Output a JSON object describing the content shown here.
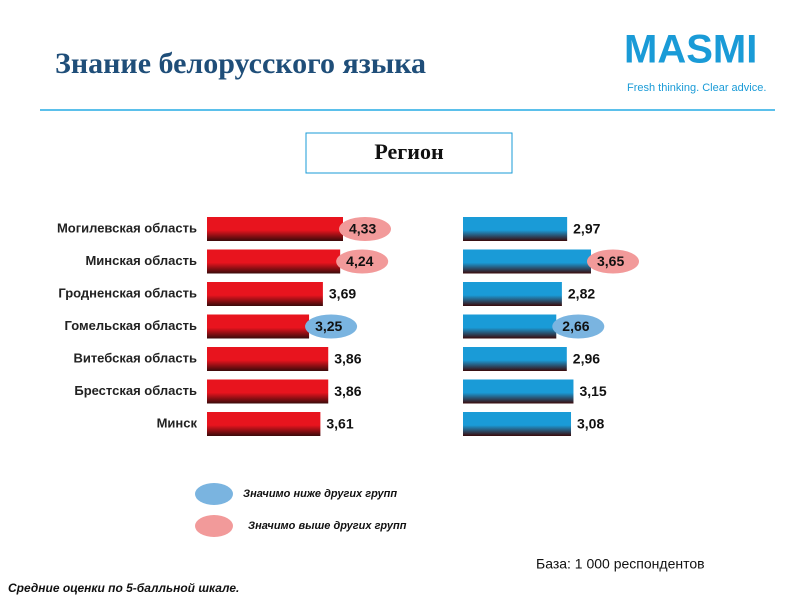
{
  "header": {
    "title": "Знание белорусского языка",
    "logo": "MASMI",
    "tagline": "Fresh thinking. Clear advice."
  },
  "chart_data": {
    "type": "bar",
    "orientation": "horizontal",
    "subtitle": "Регион",
    "categories": [
      "Могилевская область",
      "Минская область",
      "Гродненская область",
      "Гомельская область",
      "Витебская область",
      "Брестская область",
      "Минск"
    ],
    "series": [
      {
        "color": "#e8141e",
        "values": [
          4.33,
          4.24,
          3.69,
          3.25,
          3.86,
          3.86,
          3.61
        ],
        "value_labels": [
          "4,33",
          "4,24",
          "3,69",
          "3,25",
          "3,86",
          "3,86",
          "3,61"
        ],
        "highlights": [
          1,
          1,
          null,
          0,
          null,
          null,
          null
        ]
      },
      {
        "color": "#1a9bd7",
        "values": [
          2.97,
          3.65,
          2.82,
          2.66,
          2.96,
          3.15,
          3.08
        ],
        "value_labels": [
          "2,97",
          "3,65",
          "2,82",
          "2,66",
          "2,96",
          "3,15",
          "3,08"
        ],
        "highlights": [
          null,
          1,
          null,
          0,
          null,
          null,
          null
        ]
      }
    ],
    "legend": [
      {
        "label": "Значимо ниже других групп",
        "color": "#7ab4e0"
      },
      {
        "label": "Значимо выше других групп",
        "color": "#f29a9a"
      }
    ]
  },
  "footer": {
    "base": "База: 1 000 респондентов",
    "note": "Средние оценки по 5-балльной шкале."
  }
}
